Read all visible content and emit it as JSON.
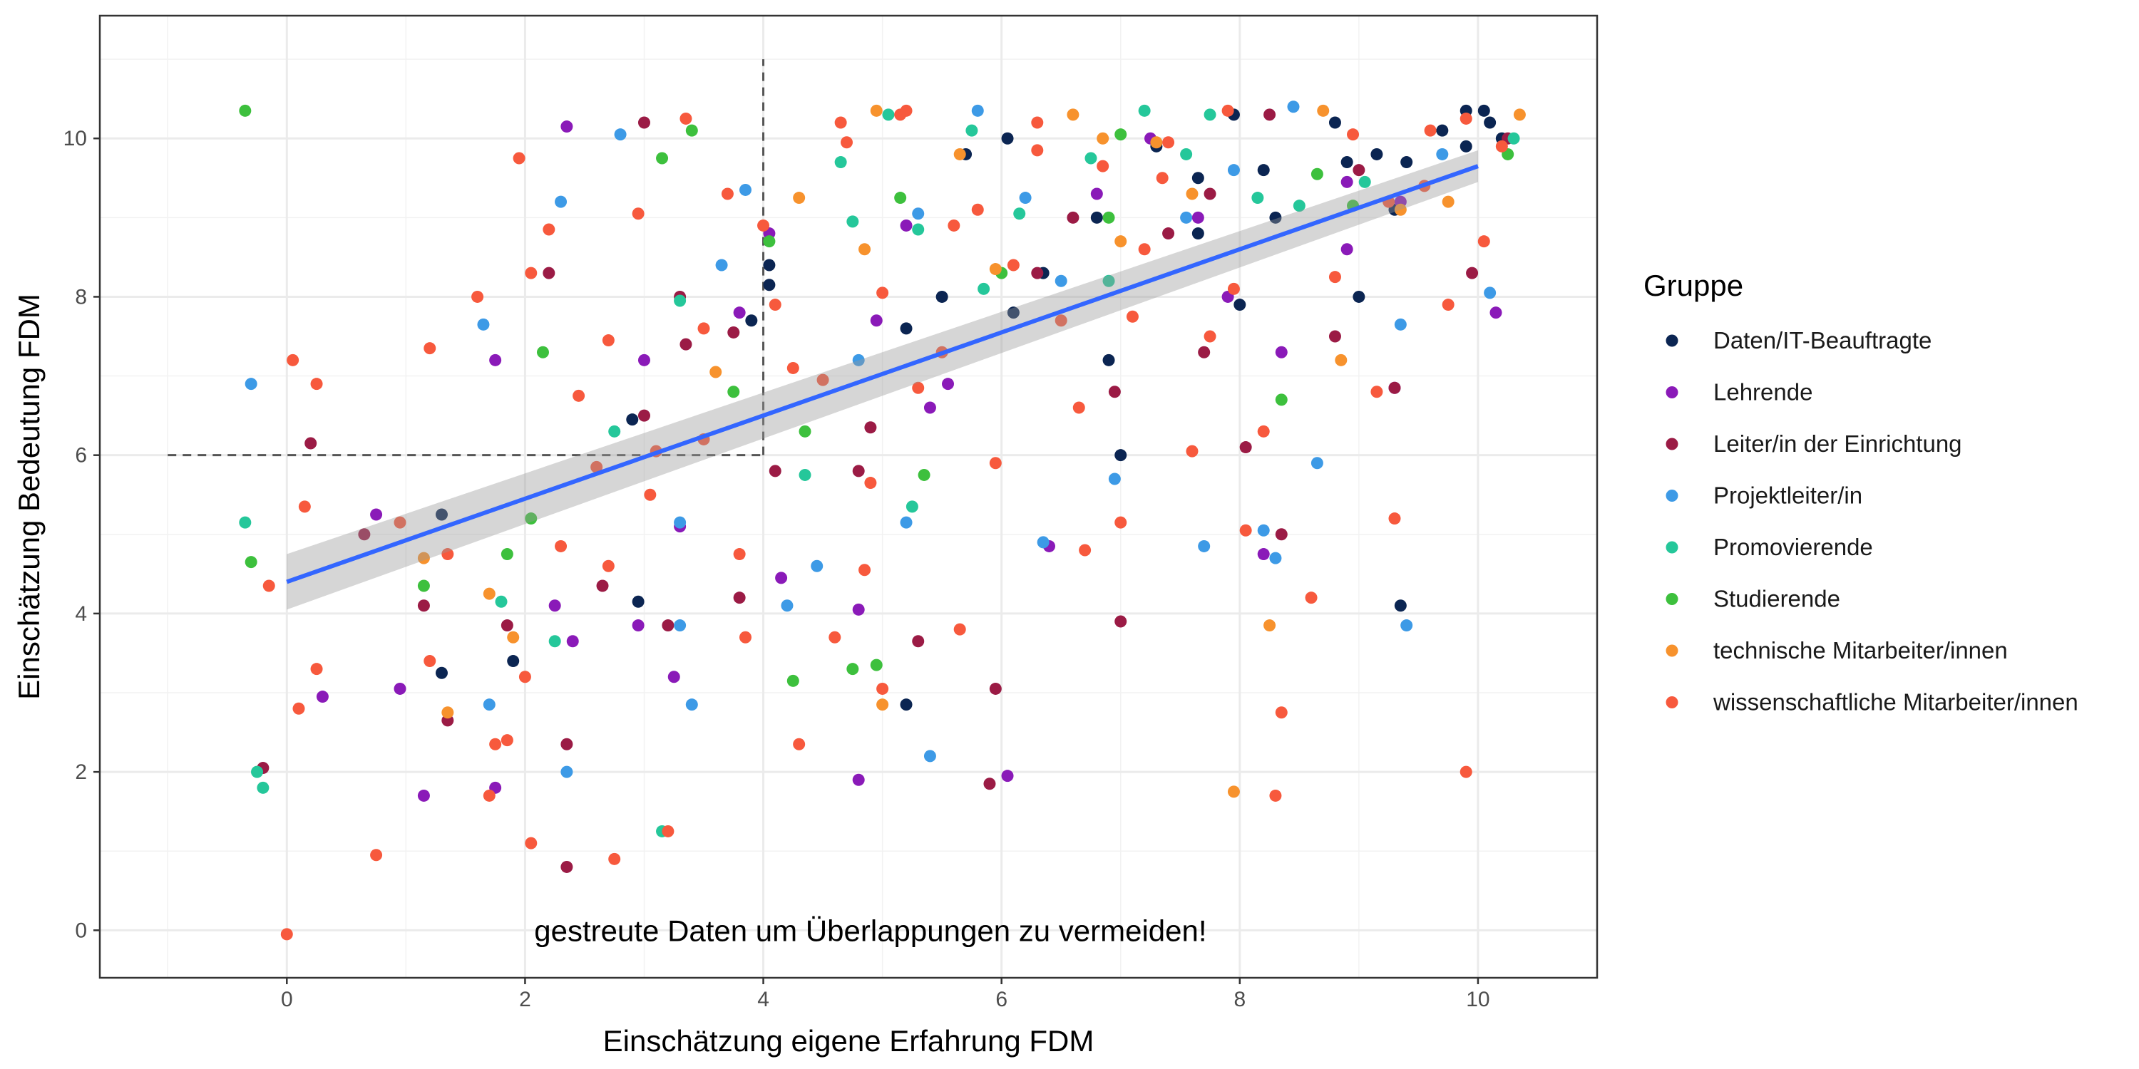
{
  "chart_data": {
    "type": "scatter",
    "title": "",
    "xlabel": "Einschätzung eigene Erfahrung FDM",
    "ylabel": "Einschätzung Bedeutung FDM",
    "xlim": [
      -1.57,
      11.0
    ],
    "ylim": [
      -0.6,
      11.55
    ],
    "x_ticks": [
      0,
      2,
      4,
      6,
      8,
      10
    ],
    "y_ticks": [
      0,
      2,
      4,
      6,
      8,
      10
    ],
    "grid": true,
    "legend_title": "Gruppe",
    "legend_position": "right",
    "annotation": "gestreute Daten um Überlappungen zu vermeiden!",
    "reference_lines": {
      "vertical_x": 4,
      "vertical_y_range": [
        6,
        11
      ],
      "horizontal_y": 6,
      "horizontal_x_range": [
        -1,
        4
      ],
      "style": "dashed"
    },
    "regression": {
      "x": [
        0,
        10
      ],
      "y": [
        4.4,
        9.65
      ],
      "ci_lower": [
        4.05,
        9.45
      ],
      "ci_upper": [
        4.75,
        9.85
      ],
      "color": "#3366ff"
    },
    "series": [
      {
        "name": "Daten/IT-Beauftragte",
        "color": "#0b2552",
        "x": [
          1.3,
          1.9,
          2.95,
          3.9,
          4.05,
          5.2,
          5.5,
          6.05,
          6.35,
          6.9,
          7.0,
          7.3,
          7.65,
          7.95,
          8.2,
          8.3,
          8.8,
          9.0,
          9.3,
          9.4,
          9.7,
          9.9,
          10.05,
          10.2,
          1.3,
          2.9,
          5.2,
          9.35,
          4.05,
          5.7,
          6.1,
          6.8,
          7.65,
          8.0,
          8.9,
          9.15,
          9.9,
          10.1
        ],
        "y": [
          5.25,
          3.4,
          4.15,
          7.7,
          8.4,
          2.85,
          8.0,
          10.0,
          8.3,
          7.2,
          6.0,
          9.9,
          8.8,
          10.3,
          9.6,
          9.0,
          10.2,
          8.0,
          9.1,
          9.7,
          10.1,
          9.9,
          10.35,
          10.0,
          3.25,
          6.45,
          7.6,
          4.1,
          8.15,
          9.8,
          7.8,
          9.0,
          9.5,
          7.9,
          9.7,
          9.8,
          10.35,
          10.2
        ]
      },
      {
        "name": "Lehrende",
        "color": "#8a1ab8",
        "x": [
          0.3,
          0.75,
          1.15,
          1.75,
          2.25,
          2.35,
          3.0,
          3.25,
          3.8,
          4.15,
          4.8,
          4.95,
          5.2,
          5.4,
          6.05,
          6.4,
          6.8,
          7.25,
          7.9,
          8.2,
          8.35,
          8.9,
          9.35,
          10.15,
          1.75,
          2.4,
          2.95,
          3.3,
          4.8,
          5.55,
          7.65,
          8.9,
          9.3,
          0.95,
          4.05
        ],
        "y": [
          2.95,
          5.25,
          1.7,
          7.2,
          4.1,
          10.15,
          7.2,
          3.2,
          7.8,
          4.45,
          1.9,
          7.7,
          8.9,
          6.6,
          1.95,
          4.85,
          9.3,
          10.0,
          8.0,
          4.75,
          7.3,
          8.6,
          9.2,
          7.8,
          1.8,
          3.65,
          3.85,
          5.1,
          4.05,
          6.9,
          9.0,
          9.45,
          6.85,
          3.05,
          8.8
        ]
      },
      {
        "name": "Leiter/in der Einrichtung",
        "color": "#9b1b45",
        "x": [
          0.2,
          0.65,
          1.15,
          1.35,
          1.85,
          2.2,
          2.35,
          2.65,
          3.0,
          3.2,
          3.3,
          3.8,
          4.1,
          4.9,
          5.3,
          5.9,
          6.3,
          6.6,
          7.0,
          7.4,
          7.75,
          8.05,
          8.35,
          8.8,
          9.0,
          9.3,
          9.95,
          10.25,
          -0.2,
          3.0,
          3.75,
          4.8,
          5.95,
          6.95,
          7.7,
          8.25,
          2.35,
          3.35
        ],
        "y": [
          6.15,
          5.0,
          4.1,
          2.65,
          3.85,
          8.3,
          2.35,
          4.35,
          10.2,
          3.85,
          8.0,
          4.2,
          5.8,
          6.35,
          3.65,
          1.85,
          8.3,
          9.0,
          3.9,
          8.8,
          9.3,
          6.1,
          5.0,
          7.5,
          9.6,
          6.85,
          8.3,
          10.0,
          2.05,
          6.5,
          7.55,
          5.8,
          3.05,
          6.8,
          7.3,
          10.3,
          0.8,
          7.4
        ]
      },
      {
        "name": "Projektleiter/in",
        "color": "#3d9ae6",
        "x": [
          -0.3,
          1.65,
          1.7,
          2.3,
          2.35,
          2.8,
          3.3,
          3.4,
          3.65,
          3.85,
          4.2,
          4.45,
          5.2,
          5.4,
          5.8,
          6.2,
          6.35,
          6.95,
          7.55,
          7.7,
          8.2,
          8.3,
          8.65,
          9.35,
          9.4,
          10.1,
          3.3,
          5.3,
          6.5,
          7.95,
          8.45,
          9.7,
          4.8
        ],
        "y": [
          6.9,
          7.65,
          2.85,
          9.2,
          2.0,
          10.05,
          5.15,
          2.85,
          8.4,
          9.35,
          4.1,
          4.6,
          5.15,
          2.2,
          10.35,
          9.25,
          4.9,
          5.7,
          9.0,
          4.85,
          5.05,
          4.7,
          5.9,
          7.65,
          3.85,
          8.05,
          3.85,
          9.05,
          8.2,
          9.6,
          10.4,
          9.8,
          7.2
        ]
      },
      {
        "name": "Promovierende",
        "color": "#25c79a",
        "x": [
          -0.35,
          -0.25,
          -0.2,
          1.8,
          2.25,
          2.75,
          3.15,
          3.3,
          4.35,
          4.75,
          5.25,
          5.3,
          5.75,
          6.15,
          6.75,
          7.2,
          7.55,
          8.15,
          9.05,
          10.3,
          4.65,
          5.85,
          6.9,
          7.75,
          8.5,
          5.05
        ],
        "y": [
          5.15,
          2.0,
          1.8,
          4.15,
          3.65,
          6.3,
          1.25,
          7.95,
          5.75,
          8.95,
          5.35,
          8.85,
          10.1,
          9.05,
          9.75,
          10.35,
          9.8,
          9.25,
          9.45,
          10.0,
          9.7,
          8.1,
          8.2,
          10.3,
          9.15,
          10.3
        ]
      },
      {
        "name": "Studierende",
        "color": "#3dc03d",
        "x": [
          -0.35,
          -0.3,
          1.15,
          1.85,
          2.05,
          3.15,
          3.4,
          3.75,
          4.05,
          4.25,
          4.35,
          4.95,
          5.15,
          5.35,
          6.0,
          6.9,
          8.35,
          8.95,
          10.25,
          2.15,
          4.75,
          7.0,
          8.65
        ],
        "y": [
          10.35,
          4.65,
          4.35,
          4.75,
          5.2,
          9.75,
          10.1,
          6.8,
          8.7,
          3.15,
          6.3,
          3.35,
          9.25,
          5.75,
          8.3,
          9.0,
          6.7,
          9.15,
          9.8,
          7.3,
          3.3,
          10.05,
          9.55
        ]
      },
      {
        "name": "technische Mitarbeiter/innen",
        "color": "#f7922d",
        "x": [
          1.15,
          1.35,
          1.7,
          1.9,
          3.6,
          4.3,
          4.95,
          5.0,
          5.65,
          6.85,
          7.0,
          7.3,
          7.6,
          7.95,
          8.25,
          8.85,
          9.35,
          10.35,
          4.85,
          5.95,
          6.6,
          8.7,
          9.75
        ],
        "y": [
          4.7,
          2.75,
          4.25,
          3.7,
          7.05,
          9.25,
          10.35,
          2.85,
          9.8,
          10.0,
          8.7,
          9.95,
          9.3,
          1.75,
          3.85,
          7.2,
          9.1,
          10.3,
          8.6,
          8.35,
          10.3,
          10.35,
          9.2
        ]
      },
      {
        "name": "wissenschaftliche Mitarbeiter/innen",
        "color": "#f7593d",
        "x": [
          -0.15,
          0.05,
          0.15,
          0.25,
          0.75,
          0.95,
          1.2,
          1.35,
          1.6,
          1.7,
          1.85,
          1.95,
          2.05,
          2.2,
          2.3,
          2.45,
          2.6,
          2.75,
          2.95,
          3.1,
          3.2,
          3.35,
          3.5,
          3.7,
          3.85,
          4.0,
          4.1,
          4.3,
          4.5,
          4.7,
          4.85,
          5.0,
          5.15,
          5.3,
          5.5,
          5.65,
          5.8,
          5.95,
          6.1,
          6.3,
          6.5,
          6.7,
          6.85,
          7.0,
          7.2,
          7.4,
          7.6,
          7.75,
          7.9,
          8.05,
          8.2,
          8.35,
          8.6,
          8.8,
          8.95,
          9.15,
          9.3,
          9.55,
          9.75,
          9.9,
          10.05,
          10.2,
          0.0,
          0.1,
          1.75,
          2.0,
          2.7,
          3.5,
          4.6,
          5.2,
          6.65,
          7.35,
          8.3,
          9.9,
          0.25,
          1.2,
          2.05,
          3.05,
          3.8,
          4.25,
          5.0,
          6.3,
          7.1,
          9.6,
          2.7,
          4.9,
          7.95,
          9.25,
          4.65,
          5.6
        ],
        "y": [
          4.35,
          7.2,
          5.35,
          3.3,
          0.95,
          5.15,
          7.35,
          4.75,
          8.0,
          1.7,
          2.4,
          9.75,
          1.1,
          8.85,
          4.85,
          6.75,
          5.85,
          0.9,
          9.05,
          6.05,
          1.25,
          10.25,
          7.6,
          9.3,
          3.7,
          8.9,
          7.9,
          2.35,
          6.95,
          9.95,
          4.55,
          3.05,
          10.3,
          6.85,
          7.3,
          3.8,
          9.1,
          5.9,
          8.4,
          10.2,
          7.7,
          4.8,
          9.65,
          5.15,
          8.6,
          9.95,
          6.05,
          7.5,
          10.35,
          5.05,
          6.3,
          2.75,
          4.2,
          8.25,
          10.05,
          6.8,
          5.2,
          9.4,
          7.9,
          10.25,
          8.7,
          9.9,
          -0.05,
          2.8,
          2.35,
          3.2,
          4.6,
          6.2,
          3.7,
          10.35,
          6.6,
          9.5,
          1.7,
          2.0,
          6.9,
          3.4,
          8.3,
          5.5,
          4.75,
          7.1,
          8.05,
          9.85,
          7.75,
          10.1,
          7.45,
          5.65,
          8.1,
          9.2,
          10.2,
          8.9
        ]
      }
    ]
  }
}
